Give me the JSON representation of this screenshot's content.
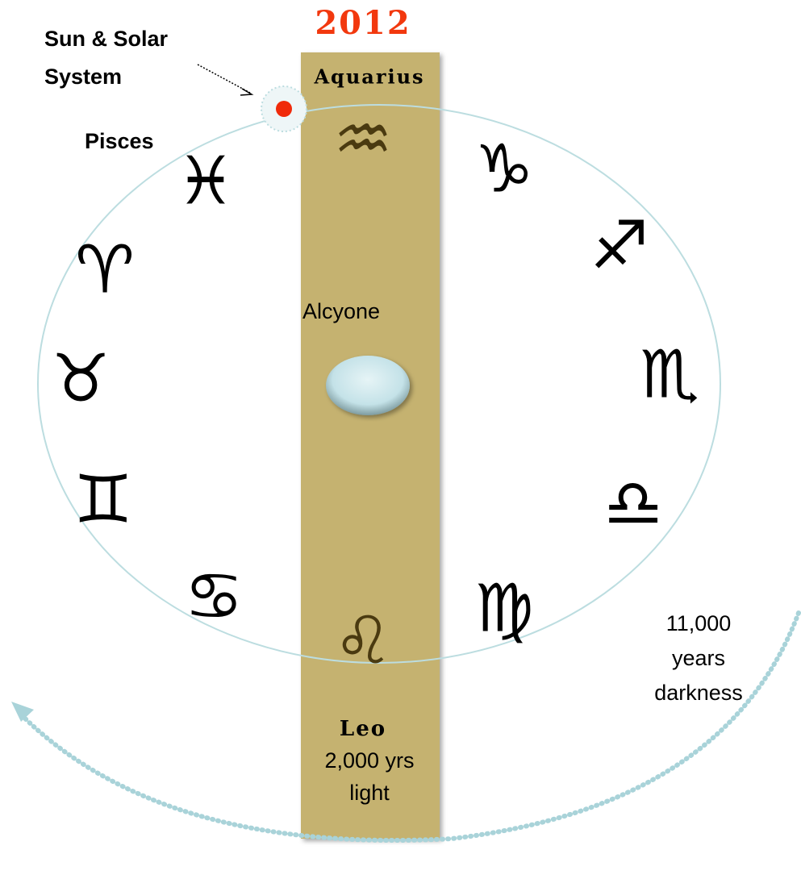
{
  "year": "2012",
  "band_top_label": "Aquarius",
  "sun_label": [
    "Sun & Solar",
    "System"
  ],
  "pisces_label": "Pisces",
  "center_label": "Alcyone",
  "darkness_label": [
    "11,000",
    "years",
    "darkness"
  ],
  "band_bottom_label": [
    "Leo",
    "2,000 yrs",
    "light"
  ],
  "symbols": {
    "aquarius": "♒︎",
    "capricorn": "♑︎",
    "sagittarius": "♐︎",
    "scorpio": "♏︎",
    "libra": "♎︎",
    "virgo": "♍︎",
    "leo": "♌︎",
    "cancer": "♋︎",
    "gemini": "♊︎",
    "taurus": "♉︎",
    "aries": "♈︎",
    "pisces": "♓︎"
  }
}
